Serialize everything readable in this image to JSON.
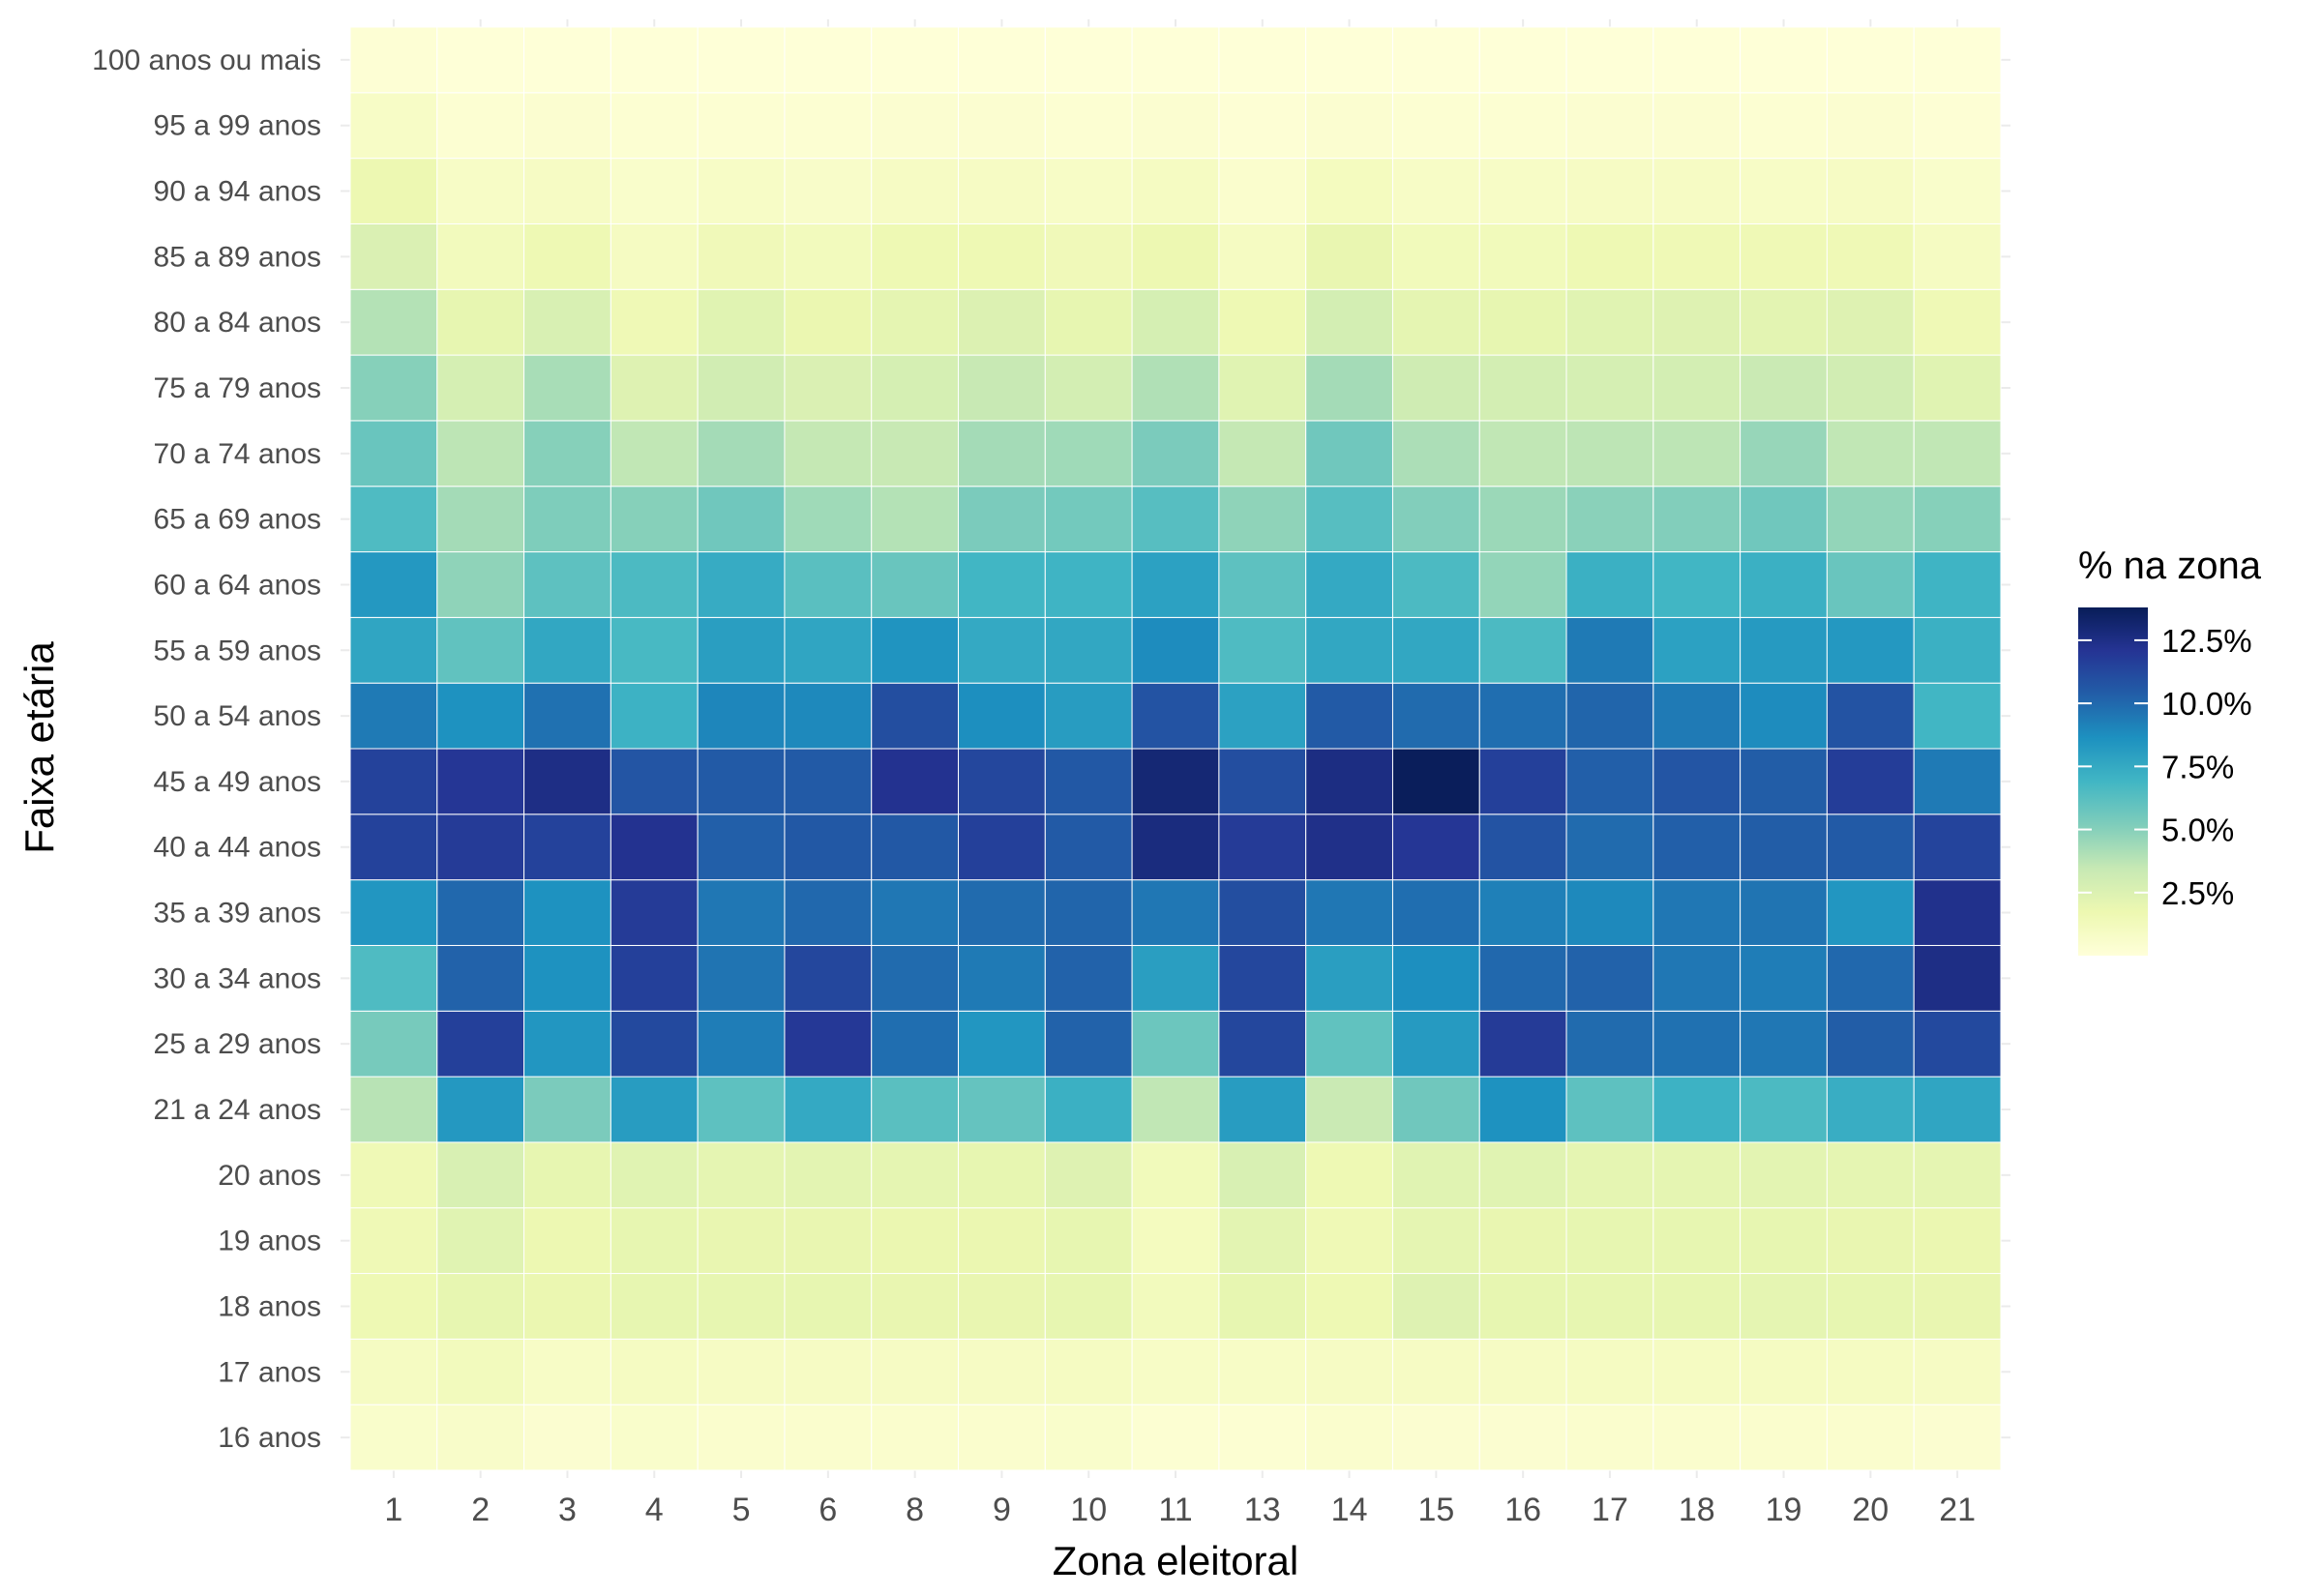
{
  "chart_data": {
    "type": "heatmap",
    "xlabel": "Zona eleitoral",
    "ylabel": "Faixa etária",
    "x_categories": [
      "1",
      "2",
      "3",
      "4",
      "5",
      "6",
      "8",
      "9",
      "10",
      "11",
      "13",
      "14",
      "15",
      "16",
      "17",
      "18",
      "19",
      "20",
      "21"
    ],
    "y_categories": [
      "16 anos",
      "17 anos",
      "18 anos",
      "19 anos",
      "20 anos",
      "21 a 24 anos",
      "25 a 29 anos",
      "30 a 34 anos",
      "35 a 39 anos",
      "40 a 44 anos",
      "45 a 49 anos",
      "50 a 54 anos",
      "55 a 59 anos",
      "60 a 64 anos",
      "65 a 69 anos",
      "70 a 74 anos",
      "75 a 79 anos",
      "80 a 84 anos",
      "85 a 89 anos",
      "90 a 94 anos",
      "95 a 99 anos",
      "100 anos ou mais"
    ],
    "values": [
      [
        0.6,
        0.7,
        0.4,
        0.6,
        0.5,
        0.5,
        0.5,
        0.5,
        0.6,
        0.3,
        0.3,
        0.5,
        0.4,
        0.4,
        0.5,
        0.5,
        0.5,
        0.5,
        0.4
      ],
      [
        1.0,
        1.2,
        0.8,
        1.0,
        0.9,
        0.9,
        0.9,
        0.9,
        1.0,
        0.8,
        0.8,
        0.9,
        0.9,
        0.9,
        1.0,
        1.0,
        1.0,
        1.0,
        0.9
      ],
      [
        1.6,
        2.0,
        1.8,
        2.0,
        2.0,
        2.0,
        1.9,
        1.9,
        2.0,
        1.2,
        2.0,
        1.6,
        2.4,
        2.0,
        2.0,
        2.0,
        2.1,
        2.0,
        1.9
      ],
      [
        1.5,
        2.3,
        1.7,
        2.0,
        1.9,
        1.9,
        1.8,
        1.8,
        2.0,
        1.1,
        2.2,
        1.5,
        2.1,
        1.9,
        2.0,
        2.0,
        2.0,
        1.9,
        1.8
      ],
      [
        1.5,
        2.7,
        2.0,
        2.3,
        2.1,
        2.2,
        2.1,
        2.0,
        2.4,
        1.3,
        2.7,
        1.6,
        2.3,
        2.3,
        2.1,
        2.1,
        2.2,
        2.1,
        2.1
      ],
      [
        3.8,
        8.3,
        5.3,
        8.1,
        6.1,
        7.5,
        6.2,
        5.9,
        7.2,
        3.6,
        8.1,
        3.3,
        5.6,
        8.6,
        6.1,
        7.1,
        6.6,
        7.3,
        7.7
      ],
      [
        5.4,
        11.6,
        8.4,
        11.2,
        9.3,
        11.9,
        9.8,
        8.4,
        10.2,
        5.7,
        11.3,
        6.0,
        8.2,
        11.8,
        9.9,
        9.7,
        9.5,
        10.4,
        11.2
      ],
      [
        6.5,
        10.2,
        8.6,
        11.6,
        9.6,
        11.3,
        9.9,
        9.4,
        10.2,
        8.0,
        11.3,
        8.0,
        8.7,
        10.0,
        10.2,
        9.5,
        9.3,
        10.0,
        12.5
      ],
      [
        8.4,
        10.0,
        8.6,
        11.8,
        9.5,
        10.0,
        9.5,
        9.9,
        10.1,
        9.5,
        11.0,
        9.5,
        9.8,
        9.2,
        8.9,
        9.5,
        9.6,
        8.4,
        12.3
      ],
      [
        11.5,
        11.8,
        11.5,
        12.2,
        10.3,
        10.6,
        10.6,
        11.6,
        10.5,
        12.7,
        11.8,
        12.4,
        12.0,
        10.8,
        9.9,
        10.3,
        10.4,
        10.5,
        11.4
      ],
      [
        11.5,
        12.0,
        12.5,
        10.7,
        10.5,
        10.5,
        12.2,
        11.3,
        10.6,
        13.0,
        11.0,
        12.6,
        13.7,
        11.6,
        10.3,
        10.7,
        10.4,
        11.7,
        9.4
      ],
      [
        9.4,
        8.6,
        9.7,
        7.1,
        9.0,
        8.9,
        11.0,
        8.7,
        8.1,
        10.8,
        7.9,
        10.5,
        9.9,
        9.8,
        10.1,
        9.4,
        8.8,
        10.8,
        6.9
      ],
      [
        7.7,
        6.0,
        7.6,
        6.7,
        8.0,
        7.7,
        8.5,
        7.5,
        7.6,
        8.8,
        6.5,
        7.6,
        7.6,
        6.6,
        9.4,
        7.9,
        8.2,
        8.3,
        7.2
      ],
      [
        8.3,
        4.8,
        6.1,
        6.6,
        7.4,
        6.2,
        5.8,
        6.9,
        7.0,
        7.9,
        6.1,
        7.5,
        6.6,
        4.7,
        7.2,
        6.9,
        7.2,
        5.8,
        7.0
      ],
      [
        6.5,
        4.3,
        5.2,
        5.0,
        5.6,
        4.4,
        3.9,
        5.3,
        5.5,
        6.3,
        4.8,
        6.3,
        5.1,
        4.5,
        4.9,
        5.1,
        5.6,
        4.7,
        5.0
      ],
      [
        5.8,
        3.7,
        5.0,
        3.6,
        4.3,
        3.5,
        3.4,
        4.3,
        4.4,
        5.3,
        3.5,
        5.6,
        4.1,
        3.6,
        3.7,
        3.7,
        4.6,
        3.6,
        3.6
      ],
      [
        5.0,
        2.8,
        4.2,
        2.4,
        3.0,
        2.6,
        2.8,
        3.4,
        2.9,
        4.0,
        2.3,
        4.3,
        3.1,
        2.9,
        2.8,
        2.9,
        3.3,
        3.0,
        2.3
      ],
      [
        3.9,
        2.0,
        2.7,
        1.5,
        2.3,
        1.8,
        2.1,
        2.5,
        2.0,
        2.8,
        1.6,
        2.9,
        2.1,
        2.0,
        2.3,
        2.4,
        2.2,
        2.4,
        1.5
      ],
      [
        2.6,
        1.2,
        1.6,
        1.0,
        1.4,
        1.2,
        1.6,
        1.6,
        1.4,
        1.7,
        1.0,
        1.9,
        1.3,
        1.3,
        1.6,
        1.5,
        1.5,
        1.5,
        1.0
      ],
      [
        1.7,
        0.8,
        0.9,
        0.6,
        0.8,
        0.7,
        0.9,
        0.9,
        0.8,
        1.0,
        0.5,
        1.1,
        0.8,
        0.8,
        0.9,
        0.9,
        0.8,
        0.9,
        0.6
      ],
      [
        0.8,
        0.3,
        0.4,
        0.3,
        0.3,
        0.3,
        0.4,
        0.4,
        0.3,
        0.4,
        0.2,
        0.4,
        0.3,
        0.3,
        0.4,
        0.4,
        0.3,
        0.4,
        0.2
      ],
      [
        0.2,
        0.1,
        0.1,
        0.1,
        0.1,
        0.1,
        0.1,
        0.1,
        0.1,
        0.1,
        0.1,
        0.1,
        0.1,
        0.1,
        0.1,
        0.1,
        0.1,
        0.1,
        0.1
      ]
    ],
    "legend": {
      "title": "% na zona",
      "ticks": [
        2.5,
        5.0,
        7.5,
        10.0,
        12.5
      ],
      "tick_labels": [
        "2.5%",
        "5.0%",
        "7.5%",
        "10.0%",
        "12.5%"
      ],
      "range": [
        0,
        13.8
      ],
      "position": "right"
    },
    "palette": [
      "#ffffd9",
      "#edf8b1",
      "#c7e9b4",
      "#7fcdbb",
      "#41b6c4",
      "#1d91c0",
      "#225ea8",
      "#253494",
      "#081d58"
    ],
    "grid": true
  }
}
